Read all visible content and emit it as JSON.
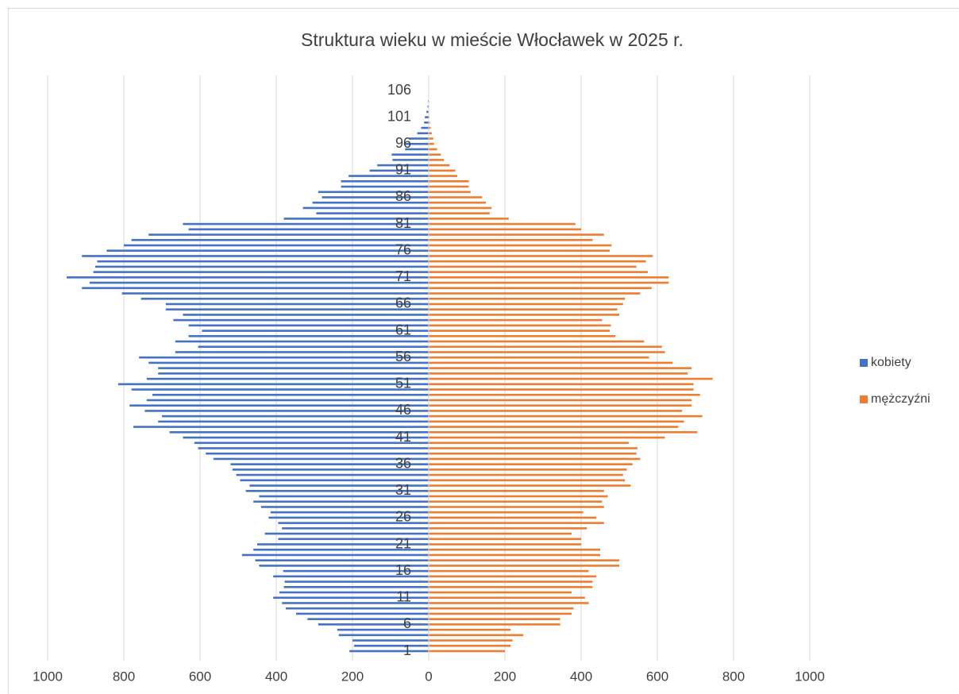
{
  "chart_data": {
    "type": "pyramid",
    "title": "Struktura wieku w mieście Włocławek w 2025 r.",
    "categories": [
      "1",
      null,
      null,
      null,
      null,
      "6",
      null,
      null,
      null,
      null,
      "11",
      null,
      null,
      null,
      null,
      "16",
      null,
      null,
      null,
      null,
      "21",
      null,
      null,
      null,
      null,
      "26",
      null,
      null,
      null,
      null,
      "31",
      null,
      null,
      null,
      null,
      "36",
      null,
      null,
      null,
      null,
      "41",
      null,
      null,
      null,
      null,
      "46",
      null,
      null,
      null,
      null,
      "51",
      null,
      null,
      null,
      null,
      "56",
      null,
      null,
      null,
      null,
      "61",
      null,
      null,
      null,
      null,
      "66",
      null,
      null,
      null,
      null,
      "71",
      null,
      null,
      null,
      null,
      "76",
      null,
      null,
      null,
      null,
      "81",
      null,
      null,
      null,
      null,
      "86",
      null,
      null,
      null,
      null,
      "91",
      null,
      null,
      null,
      null,
      "96",
      null,
      null,
      null,
      null,
      "101",
      null,
      null,
      null,
      null,
      "106"
    ],
    "series": [
      {
        "name": "kobiety",
        "color": "#4472c4",
        "values": [
          208,
          196,
          200,
          236,
          240,
          290,
          318,
          348,
          375,
          385,
          408,
          392,
          380,
          378,
          408,
          382,
          445,
          455,
          490,
          460,
          450,
          395,
          430,
          385,
          395,
          420,
          415,
          440,
          460,
          445,
          480,
          470,
          495,
          505,
          515,
          520,
          565,
          585,
          605,
          615,
          645,
          680,
          775,
          710,
          700,
          745,
          785,
          740,
          725,
          780,
          815,
          740,
          710,
          710,
          735,
          760,
          665,
          605,
          665,
          630,
          595,
          630,
          670,
          645,
          690,
          690,
          755,
          805,
          910,
          890,
          950,
          880,
          875,
          870,
          910,
          845,
          800,
          780,
          735,
          630,
          645,
          380,
          295,
          330,
          305,
          280,
          290,
          230,
          230,
          210,
          155,
          135,
          95,
          97,
          62,
          65,
          50,
          30,
          20,
          12,
          10,
          6,
          3,
          2,
          1,
          1
        ]
      },
      {
        "name": "mężczyźni",
        "color": "#ed7d31",
        "values": [
          200,
          215,
          220,
          248,
          215,
          345,
          345,
          375,
          380,
          420,
          410,
          375,
          430,
          430,
          440,
          420,
          500,
          500,
          450,
          450,
          400,
          400,
          375,
          415,
          460,
          440,
          405,
          460,
          455,
          470,
          460,
          530,
          515,
          510,
          520,
          535,
          555,
          545,
          548,
          525,
          620,
          705,
          655,
          670,
          718,
          665,
          690,
          690,
          712,
          695,
          695,
          745,
          680,
          690,
          640,
          578,
          620,
          612,
          565,
          490,
          475,
          478,
          455,
          500,
          495,
          510,
          515,
          555,
          585,
          630,
          630,
          575,
          545,
          570,
          588,
          475,
          480,
          430,
          460,
          400,
          385,
          210,
          160,
          165,
          150,
          140,
          110,
          105,
          105,
          75,
          70,
          55,
          40,
          32,
          22,
          14,
          12,
          8,
          5,
          3,
          2,
          1,
          1,
          0,
          0,
          0
        ]
      }
    ],
    "xlim": [
      0,
      1000
    ],
    "xticks": [
      0,
      200,
      400,
      600,
      800,
      1000
    ],
    "grid": true,
    "legend": "right"
  }
}
